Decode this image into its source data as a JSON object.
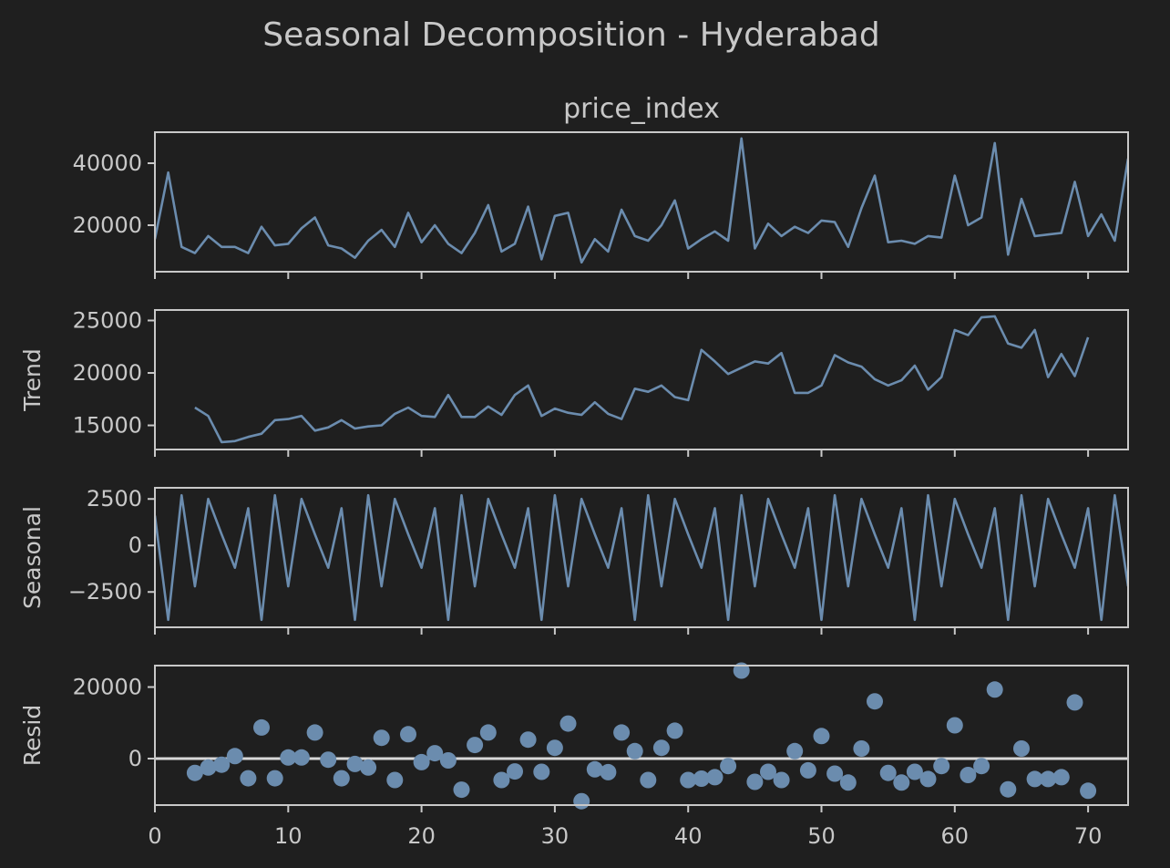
{
  "title": "Seasonal Decomposition - Hyderabad",
  "colors": {
    "background": "#1f1f1f",
    "line": "#6b8cae",
    "text": "#c8c8c8",
    "axes": "#c8c8c8",
    "zero_line": "#d8d8d8"
  },
  "chart_data": [
    {
      "type": "line",
      "title": "price_index",
      "ylabel": "",
      "xlim": [
        0,
        73
      ],
      "ylim": [
        5000,
        50000
      ],
      "yticks": [
        20000,
        40000
      ],
      "xticks": [
        0,
        10,
        20,
        30,
        40,
        50,
        60,
        70
      ],
      "grid": false,
      "x": [
        0,
        1,
        2,
        3,
        4,
        5,
        6,
        7,
        8,
        9,
        10,
        11,
        12,
        13,
        14,
        15,
        16,
        17,
        18,
        19,
        20,
        21,
        22,
        23,
        24,
        25,
        26,
        27,
        28,
        29,
        30,
        31,
        32,
        33,
        34,
        35,
        36,
        37,
        38,
        39,
        40,
        41,
        42,
        43,
        44,
        45,
        46,
        47,
        48,
        49,
        50,
        51,
        52,
        53,
        54,
        55,
        56,
        57,
        58,
        59,
        60,
        61,
        62,
        63,
        64,
        65,
        66,
        67,
        68,
        69,
        70,
        71,
        72,
        73
      ],
      "values": [
        15500,
        37000,
        13000,
        11000,
        16500,
        13000,
        13000,
        11000,
        19500,
        13500,
        14000,
        19000,
        22500,
        13500,
        12500,
        9500,
        15000,
        18500,
        13000,
        24000,
        14500,
        20000,
        14000,
        11000,
        17500,
        26500,
        11500,
        14000,
        26000,
        9000,
        23000,
        24000,
        8000,
        15500,
        11500,
        25000,
        16500,
        15000,
        20000,
        28000,
        12500,
        15500,
        18000,
        15000,
        48000,
        12500,
        20500,
        16500,
        19500,
        17500,
        21500,
        21000,
        13000,
        25500,
        36000,
        14500,
        15000,
        14000,
        16500,
        16000,
        36000,
        20000,
        22500,
        46500,
        10500,
        28500,
        16500,
        17000,
        17500,
        34000,
        16500,
        23500,
        15000,
        41500
      ]
    },
    {
      "type": "line",
      "title": "",
      "ylabel": "Trend",
      "xlim": [
        0,
        73
      ],
      "ylim": [
        12700,
        26000
      ],
      "yticks": [
        15000,
        20000,
        25000
      ],
      "xticks": [
        0,
        10,
        20,
        30,
        40,
        50,
        60,
        70
      ],
      "grid": false,
      "x": [
        3,
        4,
        5,
        6,
        7,
        8,
        9,
        10,
        11,
        12,
        13,
        14,
        15,
        16,
        17,
        18,
        19,
        20,
        21,
        22,
        23,
        24,
        25,
        26,
        27,
        28,
        29,
        30,
        31,
        32,
        33,
        34,
        35,
        36,
        37,
        38,
        39,
        40,
        41,
        42,
        43,
        44,
        45,
        46,
        47,
        48,
        49,
        50,
        51,
        52,
        53,
        54,
        55,
        56,
        57,
        58,
        59,
        60,
        61,
        62,
        63,
        64,
        65,
        66,
        67,
        68,
        69,
        70
      ],
      "values": [
        16700,
        15900,
        13400,
        13500,
        13900,
        14200,
        15500,
        15600,
        15900,
        14500,
        14800,
        15500,
        14700,
        14900,
        15000,
        16100,
        16700,
        15900,
        15800,
        17900,
        15800,
        15800,
        16800,
        16000,
        17900,
        18800,
        15900,
        16600,
        16200,
        16000,
        17200,
        16100,
        15600,
        18500,
        18200,
        18800,
        17700,
        17400,
        22200,
        21100,
        19900,
        20500,
        21100,
        20900,
        21900,
        18100,
        18100,
        18800,
        21700,
        21000,
        20600,
        19400,
        18800,
        19300,
        20700,
        18400,
        19600,
        24100,
        23600,
        25300,
        25400,
        22800,
        22400,
        24100,
        19600,
        21800,
        19700,
        23400
      ]
    },
    {
      "type": "line",
      "title": "",
      "ylabel": "Seasonal",
      "xlim": [
        0,
        73
      ],
      "ylim": [
        -4400,
        3100
      ],
      "yticks": [
        -2500,
        0,
        2500
      ],
      "xticks": [
        0,
        10,
        20,
        30,
        40,
        50,
        60,
        70
      ],
      "grid": false,
      "x": [
        0,
        1,
        2,
        3,
        4,
        5,
        6,
        7,
        8,
        9,
        10,
        11,
        12,
        13,
        14,
        15,
        16,
        17,
        18,
        19,
        20,
        21,
        22,
        23,
        24,
        25,
        26,
        27,
        28,
        29,
        30,
        31,
        32,
        33,
        34,
        35,
        36,
        37,
        38,
        39,
        40,
        41,
        42,
        43,
        44,
        45,
        46,
        47,
        48,
        49,
        50,
        51,
        52,
        53,
        54,
        55,
        56,
        57,
        58,
        59,
        60,
        61,
        62,
        63,
        64,
        65,
        66,
        67,
        68,
        69,
        70,
        71,
        72,
        73
      ],
      "values": [
        1600,
        -4000,
        2700,
        -2200,
        2500,
        600,
        -1200,
        2000,
        -4000,
        2700,
        -2200,
        2500,
        600,
        -1200,
        2000,
        -4000,
        2700,
        -2200,
        2500,
        600,
        -1200,
        2000,
        -4000,
        2700,
        -2200,
        2500,
        600,
        -1200,
        2000,
        -4000,
        2700,
        -2200,
        2500,
        600,
        -1200,
        2000,
        -4000,
        2700,
        -2200,
        2500,
        600,
        -1200,
        2000,
        -4000,
        2700,
        -2200,
        2500,
        600,
        -1200,
        2000,
        -4000,
        2700,
        -2200,
        2500,
        600,
        -1200,
        2000,
        -4000,
        2700,
        -2200,
        2500,
        600,
        -1200,
        2000,
        -4000,
        2700,
        -2200,
        2500,
        600,
        -1200,
        2000,
        -4000,
        2700,
        -2200
      ]
    },
    {
      "type": "scatter",
      "title": "",
      "ylabel": "Resid",
      "xlim": [
        0,
        73
      ],
      "ylim": [
        -13000,
        26000
      ],
      "yticks": [
        0,
        20000
      ],
      "xticks": [
        0,
        10,
        20,
        30,
        40,
        50,
        60,
        70
      ],
      "xtick_labels": [
        "0",
        "10",
        "20",
        "30",
        "40",
        "50",
        "60",
        "70"
      ],
      "grid": false,
      "zero_line": true,
      "x": [
        3,
        4,
        5,
        6,
        7,
        8,
        9,
        10,
        11,
        12,
        13,
        14,
        15,
        16,
        17,
        18,
        19,
        20,
        21,
        22,
        23,
        24,
        25,
        26,
        27,
        28,
        29,
        30,
        31,
        32,
        33,
        34,
        35,
        36,
        37,
        38,
        39,
        40,
        41,
        42,
        43,
        44,
        45,
        46,
        47,
        48,
        49,
        50,
        51,
        52,
        53,
        54,
        55,
        56,
        57,
        58,
        59,
        60,
        61,
        62,
        63,
        64,
        65,
        66,
        67,
        68,
        69,
        70
      ],
      "values": [
        -4000,
        -2500,
        -1700,
        700,
        -5500,
        8700,
        -5500,
        300,
        300,
        7300,
        -300,
        -5500,
        -1500,
        -2500,
        5800,
        -6000,
        6800,
        -1000,
        1500,
        -500,
        -8700,
        3800,
        7300,
        -6000,
        -3600,
        5300,
        -3700,
        3000,
        9800,
        -11900,
        -3000,
        -3800,
        7300,
        2100,
        -6000,
        3000,
        7800,
        -6000,
        -5600,
        -5200,
        -2100,
        24600,
        -6500,
        -3700,
        -6000,
        2100,
        -3300,
        6300,
        -4200,
        -6700,
        2800,
        16000,
        -4000,
        -6700,
        -3700,
        -5700,
        -2100,
        9300,
        -4600,
        -2100,
        19300,
        -8600,
        2800,
        -5700,
        -5700,
        -5200,
        15700,
        -9000
      ]
    }
  ]
}
